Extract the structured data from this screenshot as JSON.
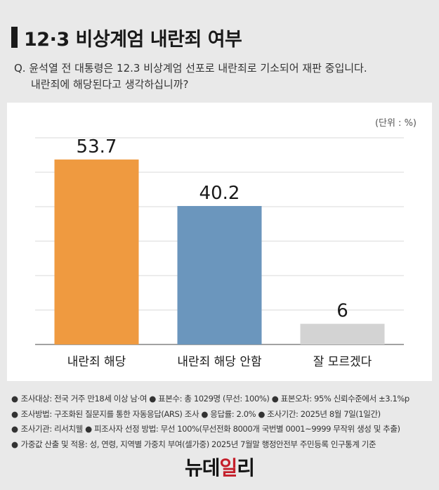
{
  "header": {
    "title": "12·3 비상계엄 내란죄 여부",
    "question_line1": "Q. 윤석열 전 대통령은 12.3 비상계엄 선포로 내란죄로 기소되어 재판 중입니다.",
    "question_line2": "내란죄에 해당된다고 생각하십니까?"
  },
  "unit_label": "(단위 : %)",
  "chart_data": {
    "type": "bar",
    "categories": [
      "내란죄 해당",
      "내란죄 해당 안함",
      "잘 모르겠다"
    ],
    "values": [
      53.7,
      40.2,
      6
    ],
    "data_labels": [
      "53.7",
      "40.2",
      "6"
    ],
    "colors": [
      "#ef9a40",
      "#6b96bd",
      "#d3d3d3"
    ],
    "ylim": [
      0,
      60
    ],
    "grid": true,
    "title": "",
    "xlabel": "",
    "ylabel": ""
  },
  "notes": [
    "조사대상: 전국 거주 만18세 이상 남·여 ● 표본수: 총 1029명 (무선: 100%) ● 표본오차: 95% 신뢰수준에서 ±3.1%p",
    "조사방법: 구조화된 질문지를 통한 자동응답(ARS) 조사 ● 응답률: 2.0% ● 조사기간: 2025년 8월 7일(1일간)",
    "조사기관: 리서치웰 ● 피조사자 선정 방법: 무선 100%(무선전화 8000개 국번별 0001~9999 무작위 생성 및 추출)",
    "가중값 산출 및 적용: 성, 연령, 지역별 가중치 부여(셀가중) 2025년 7월말 행정안전부 주민등록 인구통계 기준"
  ],
  "logo": {
    "part1": "뉴데",
    "part2": "일",
    "part3": "리"
  }
}
